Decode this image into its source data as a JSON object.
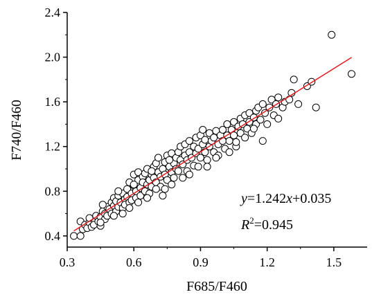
{
  "chart_data": {
    "type": "scatter",
    "xlabel": "F685/F460",
    "ylabel": "F740/F460",
    "xlim": [
      0.3,
      1.65
    ],
    "ylim": [
      0.3,
      2.4
    ],
    "xticks": [
      "0.3",
      "0.6",
      "0.9",
      "1.2",
      "1.5"
    ],
    "yticks": [
      "0.4",
      "0.8",
      "1.2",
      "1.6",
      "2.0",
      "2.4"
    ],
    "xtick_values": [
      0.3,
      0.6,
      0.9,
      1.2,
      1.5
    ],
    "ytick_values": [
      0.4,
      0.8,
      1.2,
      1.6,
      2.0,
      2.4
    ],
    "grid": false,
    "legend": "none",
    "fit_line": {
      "slope": 1.242,
      "intercept": 0.035,
      "x_range": [
        0.33,
        1.58
      ],
      "color": "#e31a1c"
    },
    "annotation": {
      "equation_y": "y",
      "equation_mid": "=1.242",
      "equation_x": "x",
      "equation_tail": "+0.035",
      "r2_label": "R",
      "r2_sup": "2",
      "r2_value": "=0.945"
    },
    "series": [
      {
        "marker": "open-circle",
        "points": [
          [
            0.33,
            0.4
          ],
          [
            0.36,
            0.4
          ],
          [
            0.37,
            0.46
          ],
          [
            0.36,
            0.53
          ],
          [
            0.38,
            0.5
          ],
          [
            0.39,
            0.47
          ],
          [
            0.4,
            0.52
          ],
          [
            0.41,
            0.48
          ],
          [
            0.42,
            0.55
          ],
          [
            0.42,
            0.5
          ],
          [
            0.43,
            0.58
          ],
          [
            0.44,
            0.53
          ],
          [
            0.45,
            0.49
          ],
          [
            0.45,
            0.57
          ],
          [
            0.46,
            0.62
          ],
          [
            0.47,
            0.55
          ],
          [
            0.47,
            0.6
          ],
          [
            0.48,
            0.66
          ],
          [
            0.48,
            0.58
          ],
          [
            0.49,
            0.64
          ],
          [
            0.5,
            0.7
          ],
          [
            0.5,
            0.6
          ],
          [
            0.51,
            0.67
          ],
          [
            0.51,
            0.74
          ],
          [
            0.52,
            0.62
          ],
          [
            0.52,
            0.71
          ],
          [
            0.53,
            0.66
          ],
          [
            0.53,
            0.76
          ],
          [
            0.54,
            0.7
          ],
          [
            0.55,
            0.65
          ],
          [
            0.55,
            0.78
          ],
          [
            0.56,
            0.73
          ],
          [
            0.56,
            0.68
          ],
          [
            0.57,
            0.82
          ],
          [
            0.57,
            0.75
          ],
          [
            0.58,
            0.7
          ],
          [
            0.58,
            0.88
          ],
          [
            0.59,
            0.78
          ],
          [
            0.59,
            0.72
          ],
          [
            0.6,
            0.85
          ],
          [
            0.6,
            0.95
          ],
          [
            0.61,
            0.8
          ],
          [
            0.61,
            0.74
          ],
          [
            0.62,
            0.9
          ],
          [
            0.62,
            0.97
          ],
          [
            0.63,
            0.83
          ],
          [
            0.63,
            0.76
          ],
          [
            0.64,
            0.93
          ],
          [
            0.64,
            0.88
          ],
          [
            0.65,
            0.8
          ],
          [
            0.65,
            0.96
          ],
          [
            0.66,
            0.86
          ],
          [
            0.66,
            1.0
          ],
          [
            0.67,
            0.9
          ],
          [
            0.67,
            0.78
          ],
          [
            0.68,
            0.95
          ],
          [
            0.68,
            0.84
          ],
          [
            0.69,
            1.02
          ],
          [
            0.69,
            0.92
          ],
          [
            0.7,
            0.88
          ],
          [
            0.7,
            1.05
          ],
          [
            0.71,
            0.97
          ],
          [
            0.71,
            1.1
          ],
          [
            0.72,
            0.93
          ],
          [
            0.72,
            0.84
          ],
          [
            0.73,
            1.0
          ],
          [
            0.73,
            0.76
          ],
          [
            0.74,
            1.06
          ],
          [
            0.74,
            0.95
          ],
          [
            0.75,
            0.9
          ],
          [
            0.75,
            1.12
          ],
          [
            0.76,
            1.02
          ],
          [
            0.77,
            0.97
          ],
          [
            0.77,
            1.14
          ],
          [
            0.78,
            1.05
          ],
          [
            0.78,
            0.92
          ],
          [
            0.79,
            1.1
          ],
          [
            0.79,
            1.0
          ],
          [
            0.8,
            1.15
          ],
          [
            0.8,
            0.98
          ],
          [
            0.81,
            1.08
          ],
          [
            0.81,
            1.2
          ],
          [
            0.82,
            1.04
          ],
          [
            0.83,
            1.12
          ],
          [
            0.83,
            1.22
          ],
          [
            0.84,
            1.08
          ],
          [
            0.84,
            0.98
          ],
          [
            0.85,
            1.15
          ],
          [
            0.85,
            1.25
          ],
          [
            0.86,
            1.1
          ],
          [
            0.87,
            1.2
          ],
          [
            0.87,
            1.03
          ],
          [
            0.88,
            1.14
          ],
          [
            0.88,
            1.28
          ],
          [
            0.89,
            1.18
          ],
          [
            0.9,
            1.1
          ],
          [
            0.9,
            1.3
          ],
          [
            0.91,
            1.22
          ],
          [
            0.91,
            1.35
          ],
          [
            0.92,
            1.15
          ],
          [
            0.92,
            1.26
          ],
          [
            0.93,
            1.08
          ],
          [
            0.94,
            1.2
          ],
          [
            0.94,
            1.32
          ],
          [
            0.95,
            1.25
          ],
          [
            0.96,
            1.15
          ],
          [
            0.96,
            1.28
          ],
          [
            0.97,
            1.34
          ],
          [
            0.98,
            1.22
          ],
          [
            0.98,
            1.12
          ],
          [
            0.99,
            1.3
          ],
          [
            1.0,
            1.25
          ],
          [
            1.0,
            1.35
          ],
          [
            1.01,
            1.18
          ],
          [
            1.02,
            1.3
          ],
          [
            1.02,
            1.4
          ],
          [
            1.03,
            1.25
          ],
          [
            1.04,
            1.35
          ],
          [
            1.05,
            1.3
          ],
          [
            1.05,
            1.42
          ],
          [
            1.06,
            1.2
          ],
          [
            1.07,
            1.38
          ],
          [
            1.08,
            1.32
          ],
          [
            1.08,
            1.45
          ],
          [
            1.09,
            1.4
          ],
          [
            1.1,
            1.28
          ],
          [
            1.1,
            1.48
          ],
          [
            1.11,
            1.36
          ],
          [
            1.12,
            1.42
          ],
          [
            1.12,
            1.5
          ],
          [
            1.13,
            1.32
          ],
          [
            1.14,
            1.46
          ],
          [
            1.15,
            1.52
          ],
          [
            1.15,
            1.4
          ],
          [
            1.16,
            1.55
          ],
          [
            1.17,
            1.44
          ],
          [
            1.18,
            1.25
          ],
          [
            1.18,
            1.58
          ],
          [
            1.19,
            1.5
          ],
          [
            1.2,
            1.4
          ],
          [
            1.21,
            1.55
          ],
          [
            1.22,
            1.62
          ],
          [
            1.23,
            1.48
          ],
          [
            1.24,
            1.58
          ],
          [
            1.25,
            1.64
          ],
          [
            1.25,
            1.45
          ],
          [
            1.27,
            1.55
          ],
          [
            1.28,
            1.6
          ],
          [
            1.3,
            1.62
          ],
          [
            1.31,
            1.68
          ],
          [
            1.32,
            1.8
          ],
          [
            1.34,
            1.58
          ],
          [
            1.38,
            1.74
          ],
          [
            1.4,
            1.78
          ],
          [
            1.42,
            1.55
          ],
          [
            1.49,
            2.2
          ],
          [
            1.58,
            1.85
          ],
          [
            0.55,
            0.6
          ],
          [
            0.62,
            0.7
          ],
          [
            0.7,
            0.82
          ],
          [
            0.77,
            0.86
          ],
          [
            0.85,
            0.95
          ],
          [
            0.93,
            1.02
          ],
          [
            1.03,
            1.15
          ],
          [
            0.45,
            0.52
          ],
          [
            0.51,
            0.58
          ],
          [
            0.58,
            0.65
          ],
          [
            0.66,
            0.74
          ],
          [
            0.74,
            0.82
          ],
          [
            0.82,
            0.92
          ],
          [
            0.89,
            1.02
          ],
          [
            0.97,
            1.1
          ],
          [
            1.06,
            1.24
          ],
          [
            1.14,
            1.36
          ],
          [
            0.4,
            0.56
          ],
          [
            0.46,
            0.68
          ],
          [
            0.53,
            0.8
          ],
          [
            0.6,
            0.86
          ],
          [
            0.68,
            0.98
          ],
          [
            0.76,
            1.08
          ]
        ]
      }
    ]
  }
}
